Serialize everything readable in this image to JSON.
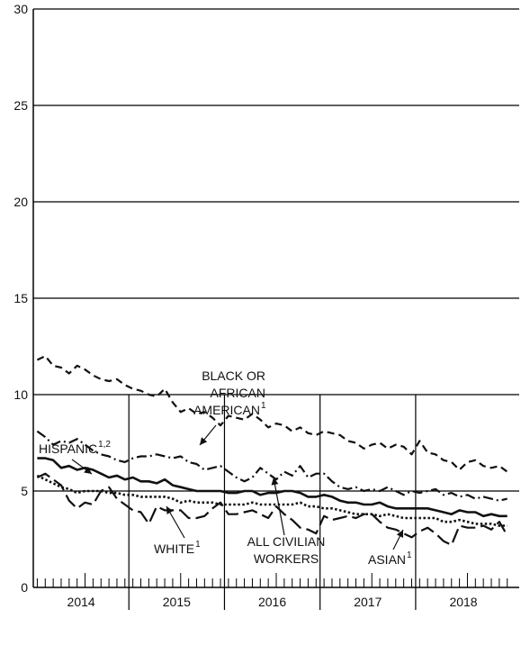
{
  "chart_data": {
    "type": "line",
    "title": "",
    "xlabel": "",
    "ylabel": "",
    "ylim": [
      0,
      30
    ],
    "y_ticks": [
      0,
      5,
      10,
      15,
      20,
      25,
      30
    ],
    "grid": "horizontal gridlines at every y tick; vertical separators at year boundaries",
    "years": [
      "2014",
      "2015",
      "2016",
      "2017",
      "2018"
    ],
    "months_per_year": 12,
    "series": [
      {
        "name": "BLACK OR AFRICAN AMERICAN",
        "label_lines": [
          "BLACK OR",
          "AFRICAN",
          "AMERICAN"
        ],
        "superscript": "1",
        "style": "dashed",
        "values": [
          11.8,
          12.0,
          11.5,
          11.4,
          11.1,
          11.5,
          11.3,
          11.0,
          10.8,
          10.7,
          10.8,
          10.5,
          10.3,
          10.2,
          10.0,
          9.9,
          10.3,
          9.6,
          9.1,
          9.3,
          9.0,
          9.1,
          8.8,
          8.4,
          8.9,
          8.8,
          8.7,
          9.0,
          8.7,
          8.3,
          8.5,
          8.4,
          8.1,
          8.3,
          8.0,
          7.9,
          8.1,
          8.0,
          7.9,
          7.6,
          7.5,
          7.2,
          7.4,
          7.5,
          7.2,
          7.4,
          7.3,
          6.9,
          7.6,
          7.0,
          6.9,
          6.6,
          6.5,
          6.1,
          6.5,
          6.6,
          6.3,
          6.2,
          6.3,
          6.0
        ]
      },
      {
        "name": "HISPANIC",
        "superscript": "1,2",
        "style": "dash-dot",
        "values": [
          8.1,
          7.8,
          7.4,
          7.6,
          7.5,
          7.7,
          7.4,
          7.1,
          6.9,
          6.8,
          6.6,
          6.5,
          6.7,
          6.8,
          6.8,
          6.9,
          6.8,
          6.7,
          6.8,
          6.5,
          6.4,
          6.1,
          6.2,
          6.3,
          6.0,
          5.7,
          5.5,
          5.7,
          6.2,
          5.9,
          5.6,
          6.0,
          5.8,
          6.3,
          5.7,
          5.9,
          5.9,
          5.5,
          5.2,
          5.1,
          5.2,
          5.0,
          5.1,
          5.0,
          5.2,
          5.0,
          4.8,
          5.0,
          4.9,
          5.0,
          5.1,
          4.8,
          4.9,
          4.7,
          4.8,
          4.6,
          4.7,
          4.6,
          4.5,
          4.6
        ]
      },
      {
        "name": "ALL CIVILIAN WORKERS",
        "label_lines": [
          "ALL CIVILIAN",
          "WORKERS"
        ],
        "style": "solid",
        "values": [
          6.7,
          6.7,
          6.6,
          6.2,
          6.3,
          6.1,
          6.2,
          6.1,
          5.9,
          5.7,
          5.8,
          5.6,
          5.7,
          5.5,
          5.5,
          5.4,
          5.6,
          5.3,
          5.2,
          5.1,
          5.0,
          5.0,
          5.0,
          5.0,
          4.9,
          4.9,
          5.0,
          5.0,
          4.8,
          4.9,
          4.9,
          5.0,
          5.0,
          4.9,
          4.7,
          4.7,
          4.8,
          4.7,
          4.5,
          4.4,
          4.4,
          4.3,
          4.3,
          4.4,
          4.2,
          4.1,
          4.1,
          4.1,
          4.1,
          4.1,
          4.0,
          3.9,
          3.8,
          4.0,
          3.9,
          3.9,
          3.7,
          3.8,
          3.7,
          3.7
        ]
      },
      {
        "name": "WHITE",
        "superscript": "1",
        "style": "dotted",
        "values": [
          5.8,
          5.6,
          5.4,
          5.2,
          5.1,
          4.9,
          5.0,
          5.0,
          5.0,
          4.9,
          4.9,
          4.8,
          4.8,
          4.7,
          4.7,
          4.7,
          4.7,
          4.6,
          4.4,
          4.5,
          4.4,
          4.4,
          4.4,
          4.3,
          4.3,
          4.3,
          4.3,
          4.4,
          4.3,
          4.3,
          4.3,
          4.3,
          4.3,
          4.4,
          4.2,
          4.2,
          4.1,
          4.1,
          4.0,
          3.9,
          3.8,
          3.8,
          3.8,
          3.7,
          3.8,
          3.7,
          3.6,
          3.6,
          3.6,
          3.6,
          3.6,
          3.4,
          3.4,
          3.5,
          3.4,
          3.3,
          3.3,
          3.3,
          3.2,
          3.2
        ]
      },
      {
        "name": "ASIAN",
        "superscript": "1",
        "style": "long-dash",
        "values": [
          5.7,
          5.9,
          5.6,
          5.3,
          4.5,
          4.1,
          4.4,
          4.3,
          5.0,
          5.2,
          4.6,
          4.3,
          4.0,
          3.9,
          3.3,
          4.2,
          4.0,
          4.0,
          4.0,
          3.6,
          3.6,
          3.7,
          4.1,
          4.4,
          3.8,
          3.8,
          3.9,
          4.0,
          3.8,
          3.6,
          4.2,
          3.8,
          3.5,
          3.1,
          3.0,
          2.8,
          3.7,
          3.5,
          3.6,
          3.7,
          3.6,
          3.8,
          3.8,
          3.4,
          3.1,
          3.0,
          2.8,
          2.6,
          2.9,
          3.1,
          2.8,
          2.4,
          2.2,
          3.2,
          3.1,
          3.1,
          3.2,
          3.0,
          3.4,
          2.7
        ]
      }
    ]
  }
}
